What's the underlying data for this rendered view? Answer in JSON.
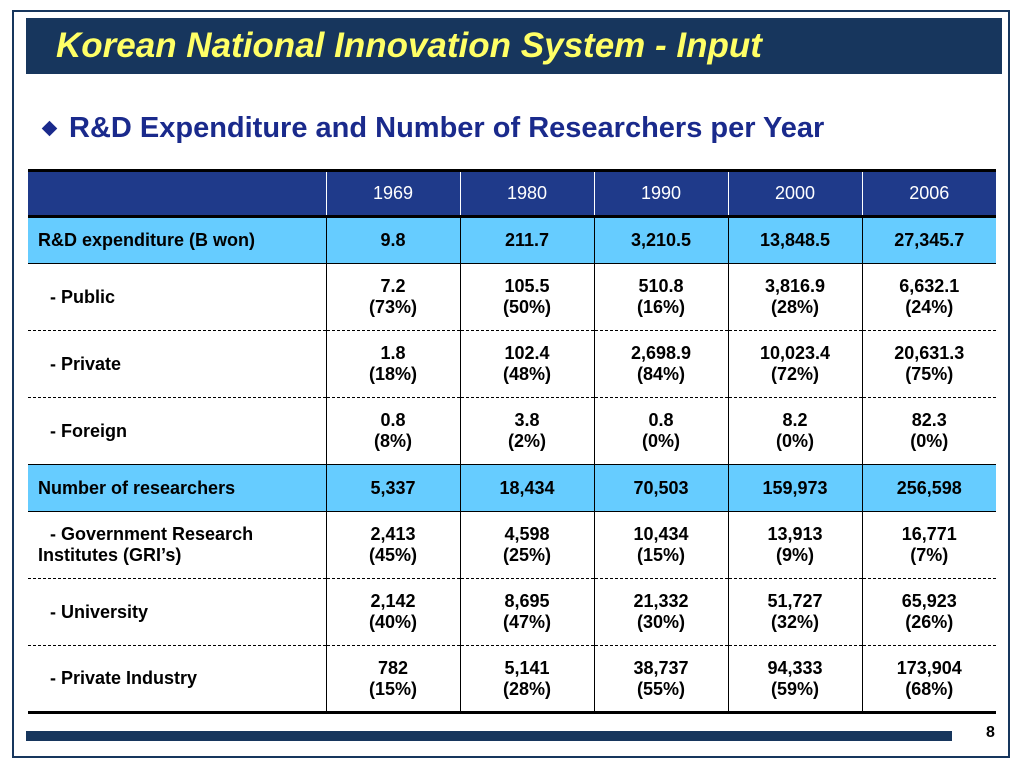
{
  "title": "Korean National Innovation System - Input",
  "subtitle": "R&D Expenditure and Number of Researchers per Year",
  "colors": {
    "navy": "#17365d",
    "title_yellow": "#ffff66",
    "header_blue": "#1f3a8a",
    "highlight": "#66ccff",
    "subtitle_blue": "#1a2a8c"
  },
  "table": {
    "header": [
      "",
      "1969",
      "1980",
      "1990",
      "2000",
      "2006"
    ],
    "rows": [
      {
        "label": "R&D expenditure (B won)",
        "style": "highlight",
        "cells": [
          {
            "v": "9.8",
            "p": ""
          },
          {
            "v": "211.7",
            "p": ""
          },
          {
            "v": "3,210.5",
            "p": ""
          },
          {
            "v": "13,848.5",
            "p": ""
          },
          {
            "v": "27,345.7",
            "p": ""
          }
        ]
      },
      {
        "label": "- Public",
        "style": "sub",
        "cells": [
          {
            "v": "7.2",
            "p": "(73%)"
          },
          {
            "v": "105.5",
            "p": "(50%)"
          },
          {
            "v": "510.8",
            "p": "(16%)"
          },
          {
            "v": "3,816.9",
            "p": "(28%)"
          },
          {
            "v": "6,632.1",
            "p": "(24%)"
          }
        ]
      },
      {
        "label": "- Private",
        "style": "sub",
        "cells": [
          {
            "v": "1.8",
            "p": "(18%)"
          },
          {
            "v": "102.4",
            "p": "(48%)"
          },
          {
            "v": "2,698.9",
            "p": "(84%)"
          },
          {
            "v": "10,023.4",
            "p": "(72%)"
          },
          {
            "v": "20,631.3",
            "p": "(75%)"
          }
        ]
      },
      {
        "label": "- Foreign",
        "style": "sub",
        "cells": [
          {
            "v": "0.8",
            "p": "(8%)"
          },
          {
            "v": "3.8",
            "p": "(2%)"
          },
          {
            "v": "0.8",
            "p": "(0%)"
          },
          {
            "v": "8.2",
            "p": "(0%)"
          },
          {
            "v": "82.3",
            "p": "(0%)"
          }
        ]
      },
      {
        "label": "Number of researchers",
        "style": "highlight",
        "cells": [
          {
            "v": "5,337",
            "p": ""
          },
          {
            "v": "18,434",
            "p": ""
          },
          {
            "v": "70,503",
            "p": ""
          },
          {
            "v": "159,973",
            "p": ""
          },
          {
            "v": "256,598",
            "p": ""
          }
        ]
      },
      {
        "label": "- Government Research Institutes (GRI’s)",
        "style": "sub",
        "cells": [
          {
            "v": "2,413",
            "p": "(45%)"
          },
          {
            "v": "4,598",
            "p": "(25%)"
          },
          {
            "v": "10,434",
            "p": "(15%)"
          },
          {
            "v": "13,913",
            "p": "(9%)"
          },
          {
            "v": "16,771",
            "p": "(7%)"
          }
        ]
      },
      {
        "label": "- University",
        "style": "sub",
        "cells": [
          {
            "v": "2,142",
            "p": "(40%)"
          },
          {
            "v": "8,695",
            "p": "(47%)"
          },
          {
            "v": "21,332",
            "p": "(30%)"
          },
          {
            "v": "51,727",
            "p": "(32%)"
          },
          {
            "v": "65,923",
            "p": "(26%)"
          }
        ]
      },
      {
        "label": "- Private Industry",
        "style": "sub",
        "cells": [
          {
            "v": "782",
            "p": "(15%)"
          },
          {
            "v": "5,141",
            "p": "(28%)"
          },
          {
            "v": "38,737",
            "p": "(55%)"
          },
          {
            "v": "94,333",
            "p": "(59%)"
          },
          {
            "v": "173,904",
            "p": "(68%)"
          }
        ]
      }
    ]
  },
  "page_number": "8"
}
